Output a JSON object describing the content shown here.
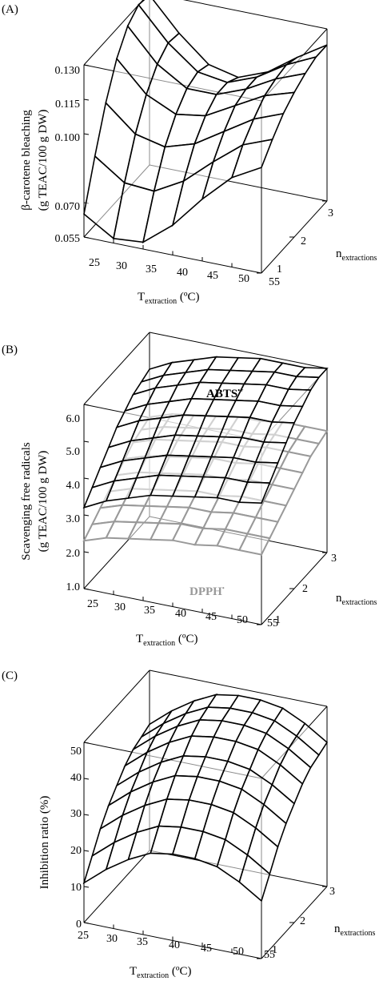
{
  "panels": [
    {
      "label": "(A)",
      "ylabel_line1": "β-carotene bleaching",
      "ylabel_line2": "(g TEAC/100 g DW)",
      "xlabel_main": "T",
      "xlabel_sub": "extraction",
      "xlabel_unit": " (ºC)",
      "ylabel_right_main": "n",
      "ylabel_right_sub": "extractions",
      "ticks_z": [
        "0.055",
        "0.070",
        "0.100",
        "0.115",
        "0.130"
      ],
      "ticks_x": [
        "25",
        "30",
        "35",
        "40",
        "45",
        "50",
        "55"
      ],
      "ticks_n": [
        "1",
        "2",
        "3"
      ]
    },
    {
      "label": "(B)",
      "ylabel_line1": "Scavenging free radicals",
      "ylabel_line2": "(g TEAC/100 g DW)",
      "xlabel_main": "T",
      "xlabel_sub": "extraction",
      "xlabel_unit": " (ºC)",
      "ylabel_right_main": "n",
      "ylabel_right_sub": "extractions",
      "ticks_z": [
        "1.0",
        "2.0",
        "3.0",
        "4.0",
        "5.0",
        "6.0"
      ],
      "ticks_x": [
        "25",
        "30",
        "35",
        "40",
        "45",
        "50",
        "55"
      ],
      "ticks_n": [
        "1",
        "2",
        "3"
      ],
      "series_abts_main": "ABTS",
      "series_abts_sup": "•+",
      "series_dpph_main": "DPPH",
      "series_dpph_sup": "•"
    },
    {
      "label": "(C)",
      "ylabel_line1": "Inhibition ratio (%)",
      "xlabel_main": "T",
      "xlabel_sub": "extraction",
      "xlabel_unit": " (ºC)",
      "ylabel_right_main": "n",
      "ylabel_right_sub": "extractions",
      "ticks_z": [
        "0",
        "10",
        "20",
        "30",
        "40",
        "50"
      ],
      "ticks_x": [
        "25",
        "30",
        "35",
        "40",
        "45",
        "50",
        "55"
      ],
      "ticks_n": [
        "1",
        "2",
        "3"
      ]
    }
  ],
  "chart_data": [
    {
      "type": "surface",
      "x_var": "T_extraction (ºC)",
      "x_range": [
        25,
        55
      ],
      "n_var": "n_extractions",
      "n_range": [
        1,
        3
      ],
      "z_range": [
        0.055,
        0.13
      ],
      "grid_x": [
        25,
        30,
        35,
        40,
        45,
        50,
        55
      ],
      "grid_n": [
        1,
        1.33,
        1.67,
        2,
        2.33,
        2.67,
        3
      ],
      "series": [
        {
          "color": "#000000",
          "z": [
            [
              0.065,
              0.057,
              0.058,
              0.068,
              0.082,
              0.094,
              0.101
            ],
            [
              0.085,
              0.076,
              0.075,
              0.082,
              0.093,
              0.103,
              0.108
            ],
            [
              0.103,
              0.092,
              0.089,
              0.093,
              0.101,
              0.109,
              0.114
            ],
            [
              0.117,
              0.104,
              0.098,
              0.1,
              0.107,
              0.114,
              0.118
            ],
            [
              0.126,
              0.112,
              0.104,
              0.104,
              0.109,
              0.116,
              0.121
            ],
            [
              0.13,
              0.116,
              0.106,
              0.104,
              0.109,
              0.117,
              0.123
            ],
            [
              0.129,
              0.115,
              0.104,
              0.101,
              0.106,
              0.115,
              0.123
            ]
          ]
        }
      ]
    },
    {
      "type": "surface",
      "x_var": "T_extraction (ºC)",
      "x_range": [
        25,
        55
      ],
      "n_var": "n_extractions",
      "n_range": [
        1,
        3
      ],
      "z_range": [
        1.0,
        6.0
      ],
      "grid_x": [
        25,
        28.75,
        32.5,
        36.25,
        40,
        43.75,
        47.5,
        51.25,
        55
      ],
      "grid_n": [
        1,
        1.25,
        1.5,
        1.75,
        2,
        2.25,
        2.5,
        2.75,
        3
      ],
      "series": [
        {
          "name": "ABTS•+",
          "color": "#000000",
          "z": [
            [
              3.2,
              3.5,
              3.7,
              3.9,
              4.0,
              4.1,
              4.2,
              4.2,
              4.3
            ],
            [
              3.5,
              3.8,
              4.0,
              4.2,
              4.3,
              4.4,
              4.5,
              4.5,
              4.6
            ],
            [
              3.8,
              4.1,
              4.3,
              4.5,
              4.6,
              4.7,
              4.8,
              4.8,
              4.9
            ],
            [
              4.1,
              4.4,
              4.6,
              4.8,
              4.9,
              5.0,
              5.1,
              5.1,
              5.2
            ],
            [
              4.4,
              4.7,
              4.9,
              5.1,
              5.2,
              5.3,
              5.4,
              5.4,
              5.5
            ],
            [
              4.6,
              4.9,
              5.1,
              5.3,
              5.4,
              5.5,
              5.6,
              5.6,
              5.7
            ],
            [
              4.8,
              5.1,
              5.3,
              5.5,
              5.6,
              5.7,
              5.8,
              5.8,
              5.9
            ],
            [
              4.9,
              5.2,
              5.4,
              5.6,
              5.7,
              5.8,
              5.9,
              5.9,
              6.0
            ],
            [
              5.0,
              5.3,
              5.5,
              5.7,
              5.8,
              5.9,
              5.9,
              5.9,
              6.0
            ]
          ]
        },
        {
          "name": "DPPH•",
          "color": "#999999",
          "z": [
            [
              2.3,
              2.5,
              2.6,
              2.7,
              2.8,
              2.8,
              2.9,
              2.9,
              2.9
            ],
            [
              2.5,
              2.7,
              2.8,
              2.9,
              3.0,
              3.0,
              3.1,
              3.1,
              3.1
            ],
            [
              2.7,
              2.9,
              3.0,
              3.1,
              3.2,
              3.2,
              3.3,
              3.3,
              3.3
            ],
            [
              2.9,
              3.1,
              3.2,
              3.3,
              3.4,
              3.4,
              3.5,
              3.5,
              3.5
            ],
            [
              3.1,
              3.3,
              3.4,
              3.5,
              3.6,
              3.6,
              3.7,
              3.7,
              3.7
            ],
            [
              3.3,
              3.5,
              3.6,
              3.7,
              3.8,
              3.8,
              3.9,
              3.9,
              3.9
            ],
            [
              3.5,
              3.7,
              3.8,
              3.9,
              4.0,
              4.0,
              4.1,
              4.1,
              4.1
            ],
            [
              3.6,
              3.8,
              3.9,
              4.0,
              4.1,
              4.1,
              4.2,
              4.2,
              4.2
            ],
            [
              3.7,
              3.9,
              4.0,
              4.1,
              4.2,
              4.2,
              4.3,
              4.3,
              4.3
            ]
          ]
        }
      ]
    },
    {
      "type": "surface",
      "x_var": "T_extraction (ºC)",
      "x_range": [
        25,
        55
      ],
      "n_var": "n_extractions",
      "n_range": [
        1,
        3
      ],
      "z_range": [
        0,
        50
      ],
      "grid_x": [
        25,
        28.75,
        32.5,
        36.25,
        40,
        43.75,
        47.5,
        51.25,
        55
      ],
      "grid_n": [
        1,
        1.25,
        1.5,
        1.75,
        2,
        2.25,
        2.5,
        2.75,
        3
      ],
      "series": [
        {
          "color": "#000000",
          "z": [
            [
              11,
              16,
              20,
              23,
              24,
              24,
              23,
              20,
              16
            ],
            [
              16,
              21,
              25,
              28,
              29,
              29,
              28,
              25,
              21
            ],
            [
              21,
              26,
              30,
              33,
              34,
              34,
              33,
              30,
              26
            ],
            [
              25,
              30,
              34,
              37,
              38,
              38,
              37,
              34,
              30
            ],
            [
              28,
              33,
              37,
              40,
              41,
              41,
              40,
              37,
              33
            ],
            [
              31,
              36,
              40,
              43,
              44,
              44,
              43,
              40,
              36
            ],
            [
              33,
              38,
              42,
              45,
              46,
              46,
              45,
              42,
              38
            ],
            [
              34,
              39,
              43,
              46,
              47,
              47,
              46,
              43,
              39
            ],
            [
              35,
              40,
              44,
              47,
              48,
              48,
              47,
              44,
              40
            ]
          ]
        }
      ]
    }
  ]
}
